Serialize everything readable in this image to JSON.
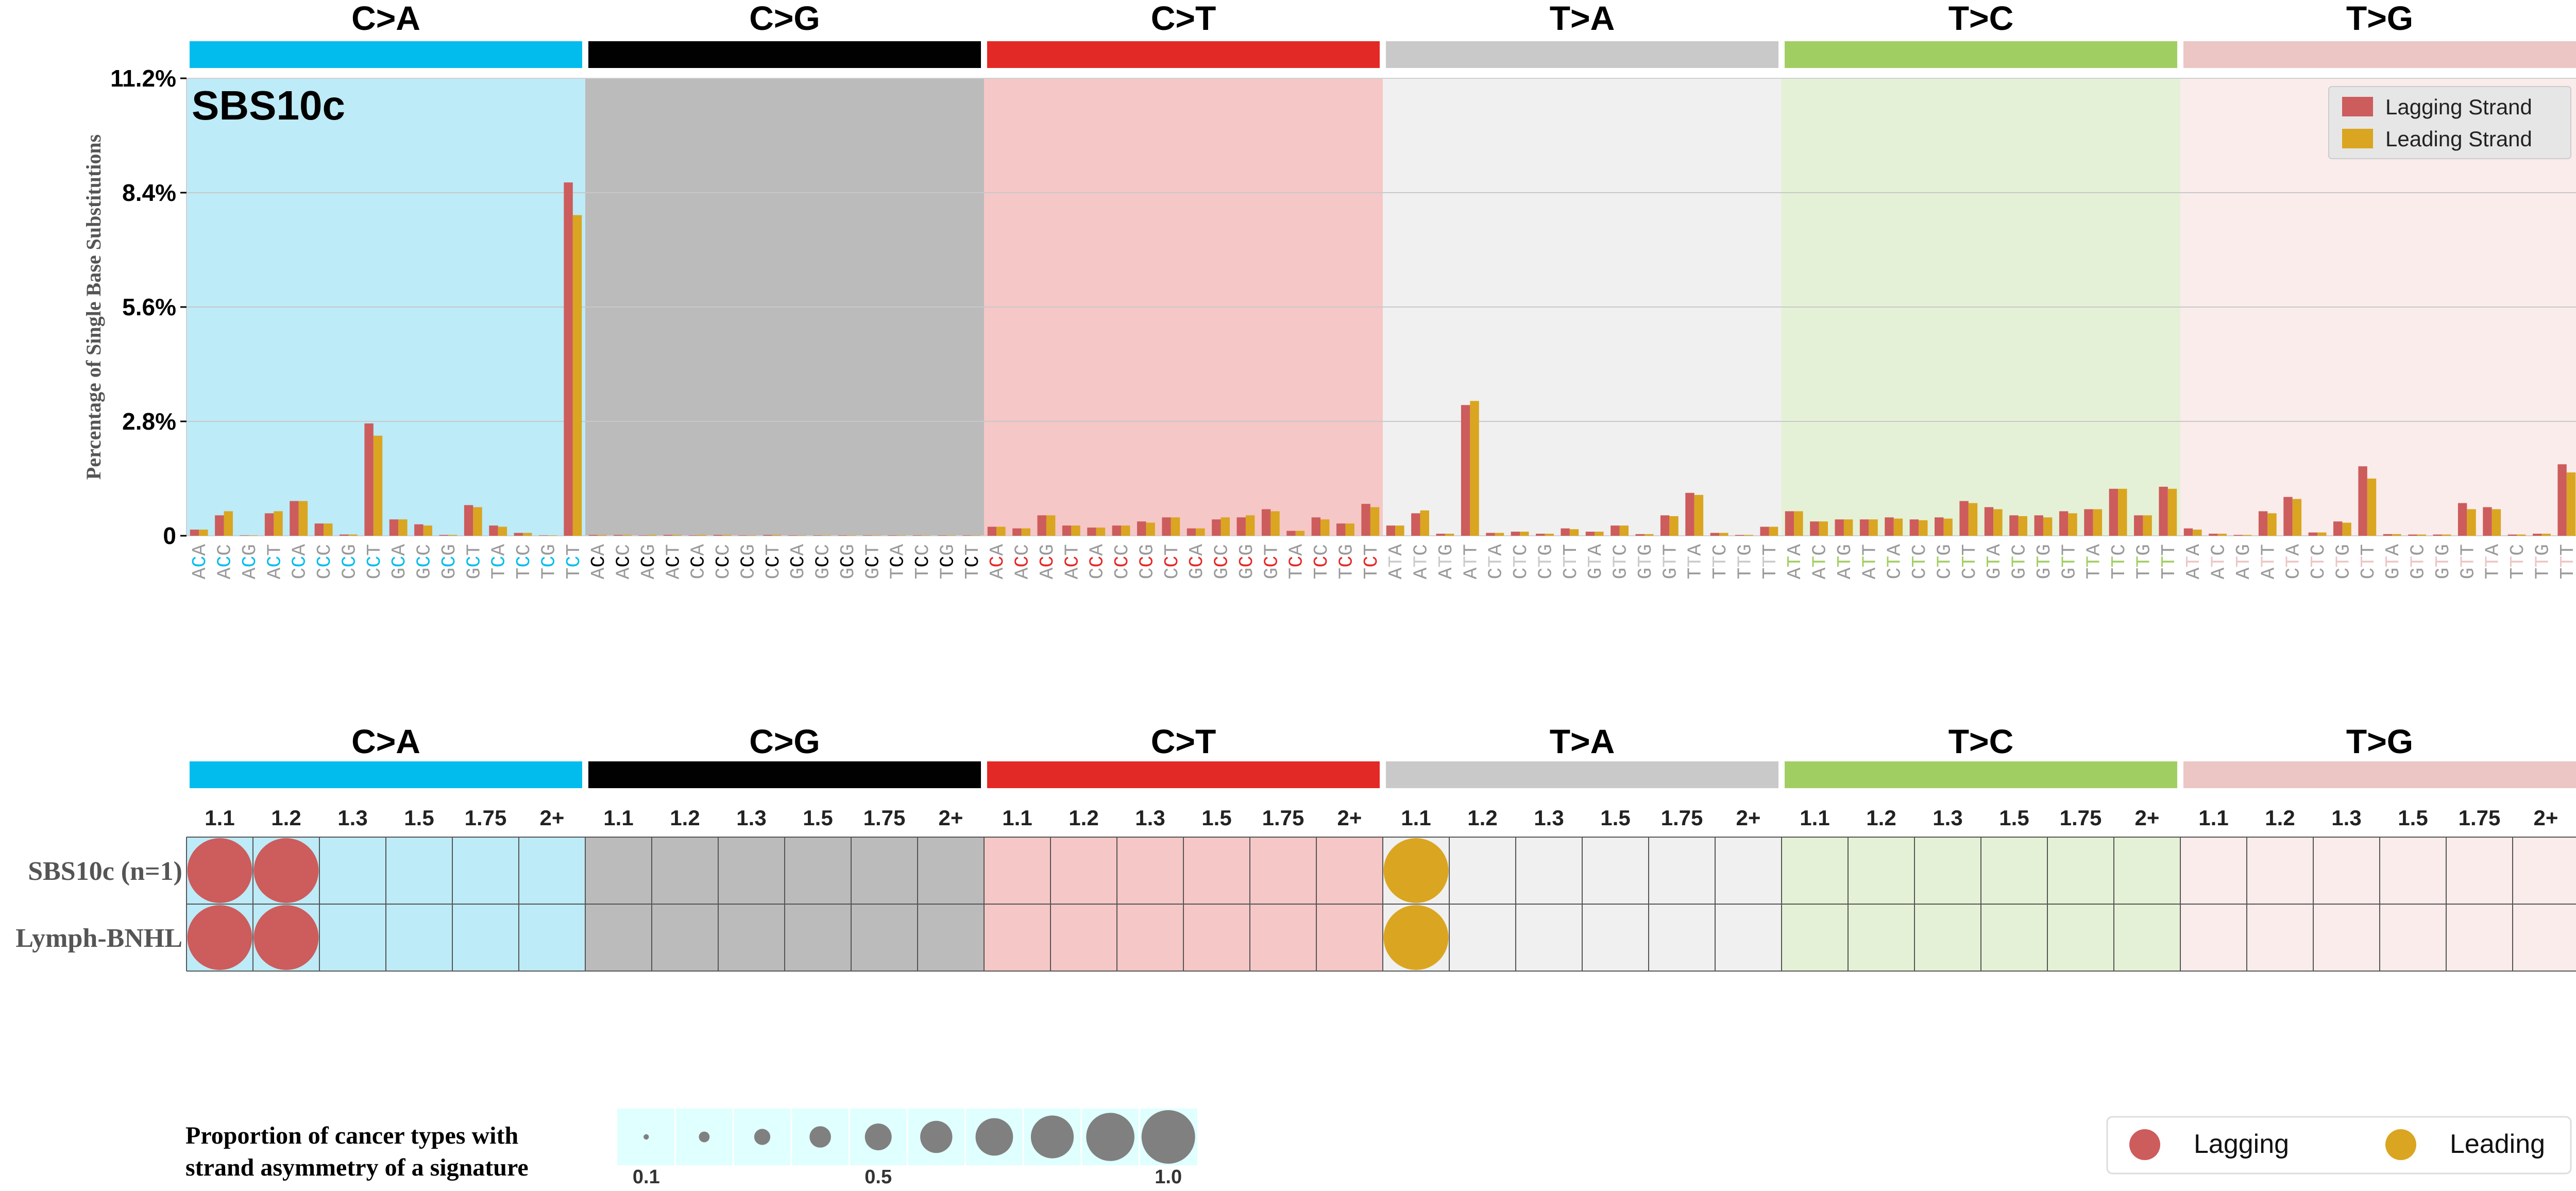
{
  "chart_data": [
    {
      "type": "bar",
      "signature_label": "SBS10c",
      "ylabel": "Percentage of Single Base Substitutions",
      "ylim": [
        0,
        11.2
      ],
      "yticks": [
        "0",
        "2.8%",
        "5.6%",
        "8.4%",
        "11.2%"
      ],
      "ytick_values": [
        0,
        2.8,
        5.6,
        8.4,
        11.2
      ],
      "grid": true,
      "legend": {
        "placement": "top-right",
        "entries": [
          "Lagging Strand",
          "Leading Strand"
        ]
      },
      "mutation_types": [
        "C>A",
        "C>G",
        "C>T",
        "T>A",
        "T>C",
        "T>G"
      ],
      "categories": [
        "ACA",
        "ACC",
        "ACG",
        "ACT",
        "CCA",
        "CCC",
        "CCG",
        "CCT",
        "GCA",
        "GCC",
        "GCG",
        "GCT",
        "TCA",
        "TCC",
        "TCG",
        "TCT",
        "ACA",
        "ACC",
        "ACG",
        "ACT",
        "CCA",
        "CCC",
        "CCG",
        "CCT",
        "GCA",
        "GCC",
        "GCG",
        "GCT",
        "TCA",
        "TCC",
        "TCG",
        "TCT",
        "ACA",
        "ACC",
        "ACG",
        "ACT",
        "CCA",
        "CCC",
        "CCG",
        "CCT",
        "GCA",
        "GCC",
        "GCG",
        "GCT",
        "TCA",
        "TCC",
        "TCG",
        "TCT",
        "ATA",
        "ATC",
        "ATG",
        "ATT",
        "CTA",
        "CTC",
        "CTG",
        "CTT",
        "GTA",
        "GTC",
        "GTG",
        "GTT",
        "TTA",
        "TTC",
        "TTG",
        "TTT",
        "ATA",
        "ATC",
        "ATG",
        "ATT",
        "CTA",
        "CTC",
        "CTG",
        "CTT",
        "GTA",
        "GTC",
        "GTG",
        "GTT",
        "TTA",
        "TTC",
        "TTG",
        "TTT",
        "ATA",
        "ATC",
        "ATG",
        "ATT",
        "CTA",
        "CTC",
        "CTG",
        "CTT",
        "GTA",
        "GTC",
        "GTG",
        "GTT",
        "TTA",
        "TTC",
        "TTG",
        "TTT"
      ],
      "series": [
        {
          "name": "Lagging Strand",
          "values": [
            0.15,
            0.5,
            0.01,
            0.55,
            0.85,
            0.3,
            0.03,
            2.75,
            0.4,
            0.28,
            0.02,
            0.75,
            0.25,
            0.07,
            0.01,
            8.65,
            0.02,
            0.02,
            0.01,
            0.02,
            0.01,
            0.02,
            0.01,
            0.02,
            0.01,
            0.01,
            0.01,
            0.01,
            0.01,
            0.01,
            0.01,
            0.01,
            0.22,
            0.18,
            0.5,
            0.25,
            0.2,
            0.25,
            0.35,
            0.45,
            0.18,
            0.4,
            0.45,
            0.65,
            0.12,
            0.45,
            0.3,
            0.78,
            0.25,
            0.55,
            0.05,
            3.2,
            0.07,
            0.1,
            0.05,
            0.18,
            0.1,
            0.25,
            0.04,
            0.5,
            1.05,
            0.07,
            0.02,
            0.22,
            0.6,
            0.35,
            0.4,
            0.4,
            0.45,
            0.4,
            0.45,
            0.85,
            0.7,
            0.5,
            0.5,
            0.6,
            0.65,
            1.15,
            0.5,
            1.2,
            0.18,
            0.05,
            0.02,
            0.6,
            0.95,
            0.08,
            0.35,
            1.7,
            0.04,
            0.03,
            0.03,
            0.8,
            0.7,
            0.03,
            0.05,
            1.75
          ]
        },
        {
          "name": "Leading Strand",
          "values": [
            0.15,
            0.6,
            0.01,
            0.6,
            0.85,
            0.3,
            0.03,
            2.45,
            0.4,
            0.25,
            0.02,
            0.7,
            0.22,
            0.07,
            0.01,
            7.85,
            0.02,
            0.02,
            0.02,
            0.02,
            0.02,
            0.02,
            0.01,
            0.02,
            0.01,
            0.01,
            0.01,
            0.01,
            0.01,
            0.01,
            0.01,
            0.01,
            0.22,
            0.18,
            0.5,
            0.25,
            0.2,
            0.25,
            0.32,
            0.45,
            0.18,
            0.45,
            0.5,
            0.6,
            0.12,
            0.4,
            0.3,
            0.7,
            0.25,
            0.62,
            0.05,
            3.3,
            0.07,
            0.1,
            0.05,
            0.16,
            0.1,
            0.25,
            0.04,
            0.48,
            1.0,
            0.07,
            0.02,
            0.22,
            0.6,
            0.35,
            0.4,
            0.4,
            0.42,
            0.38,
            0.42,
            0.8,
            0.65,
            0.48,
            0.45,
            0.55,
            0.65,
            1.15,
            0.5,
            1.15,
            0.15,
            0.05,
            0.02,
            0.55,
            0.9,
            0.08,
            0.32,
            1.4,
            0.04,
            0.03,
            0.03,
            0.65,
            0.65,
            0.03,
            0.05,
            1.55
          ]
        }
      ]
    },
    {
      "type": "scatter",
      "description_label": "strand asymmetry bubble grid",
      "mutation_types": [
        "C>A",
        "C>G",
        "C>T",
        "T>A",
        "T>C",
        "T>G"
      ],
      "ratio_labels": [
        "1.1",
        "1.2",
        "1.3",
        "1.5",
        "1.75",
        "2+"
      ],
      "rows": [
        "SBS10c (n=1)",
        "Lymph-BNHL"
      ],
      "points": [
        {
          "row": "SBS10c (n=1)",
          "mutation_type": "C>A",
          "ratio": "1.1",
          "strand": "Lagging",
          "proportion": 1.0
        },
        {
          "row": "SBS10c (n=1)",
          "mutation_type": "C>A",
          "ratio": "1.2",
          "strand": "Lagging",
          "proportion": 1.0
        },
        {
          "row": "SBS10c (n=1)",
          "mutation_type": "T>A",
          "ratio": "1.1",
          "strand": "Leading",
          "proportion": 1.0
        },
        {
          "row": "Lymph-BNHL",
          "mutation_type": "C>A",
          "ratio": "1.1",
          "strand": "Lagging",
          "proportion": 1.0
        },
        {
          "row": "Lymph-BNHL",
          "mutation_type": "C>A",
          "ratio": "1.2",
          "strand": "Lagging",
          "proportion": 1.0
        },
        {
          "row": "Lymph-BNHL",
          "mutation_type": "T>A",
          "ratio": "1.1",
          "strand": "Leading",
          "proportion": 1.0
        }
      ],
      "size_legend": {
        "title_line1": "Proportion of cancer types with",
        "title_line2": "strand asymmetry of a signature",
        "proportions": [
          0.1,
          0.2,
          0.3,
          0.4,
          0.5,
          0.6,
          0.7,
          0.8,
          0.9,
          1.0
        ],
        "tick_labels": [
          "0.1",
          "0.5",
          "1.0"
        ]
      },
      "legend": {
        "placement": "bottom-right",
        "entries": [
          "Lagging",
          "Leading"
        ]
      }
    }
  ],
  "colors": {
    "lagging": "#cd5c5c",
    "leading": "#daa520",
    "type_bars": [
      "#03bcee",
      "#010101",
      "#e32926",
      "#cac9c9",
      "#a1ce63",
      "#ebc6c4"
    ],
    "panel_backgrounds": [
      "#bdebf7",
      "#bbbbbb",
      "#f5c7c7",
      "#f0f0f0",
      "#e5f1d6",
      "#f9eceb"
    ],
    "grid_line": "#c8c8c8",
    "size_legend_bg": "#e0ffff",
    "size_legend_dot": "#808080"
  }
}
